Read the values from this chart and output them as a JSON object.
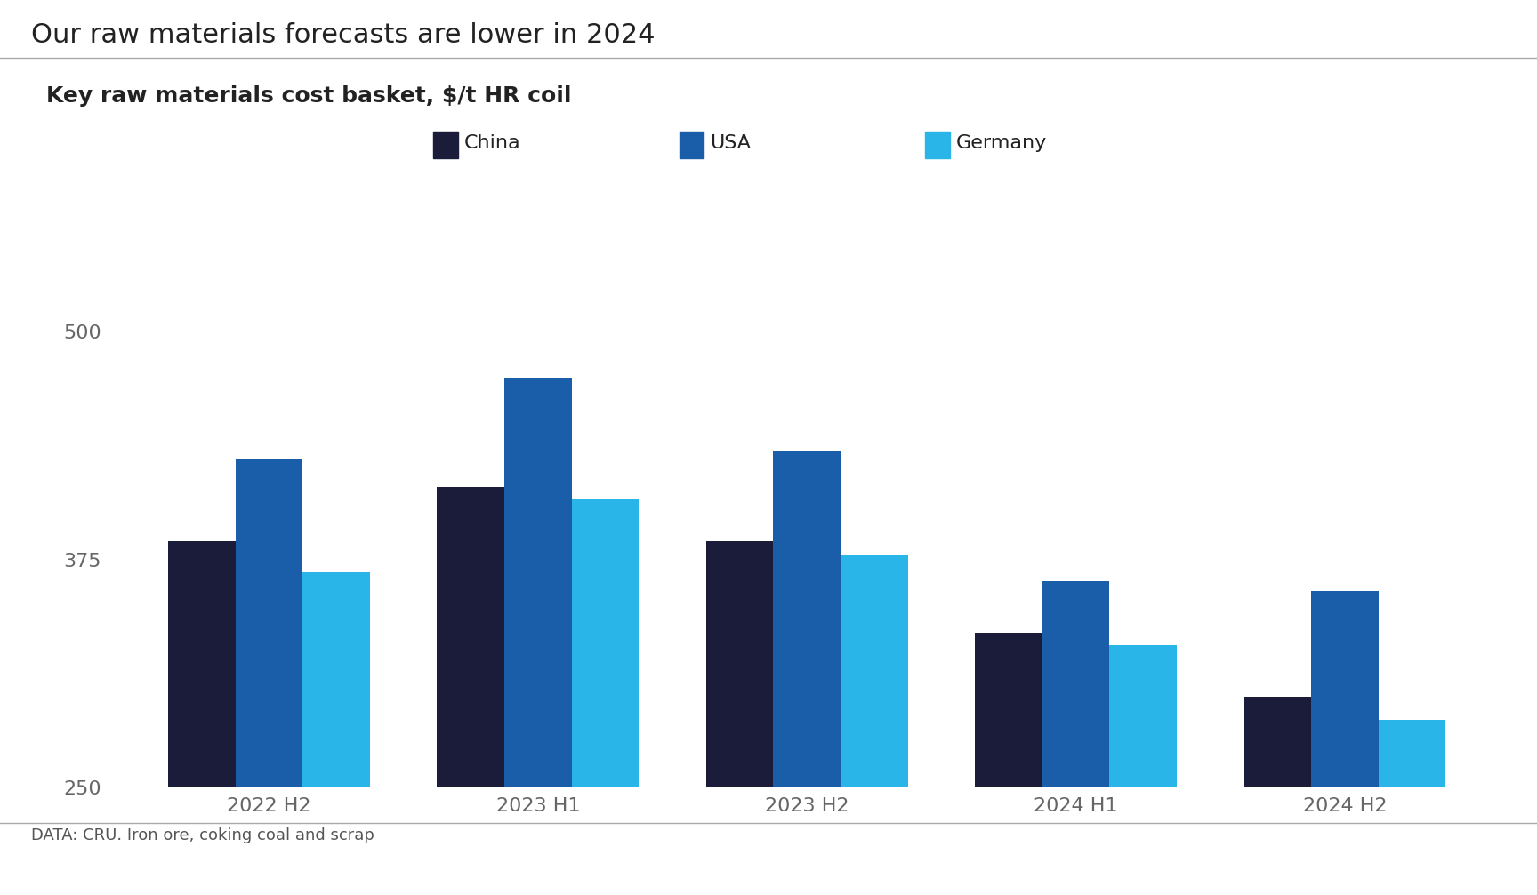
{
  "title": "Our raw materials forecasts are lower in 2024",
  "subtitle": "Key raw materials cost basket, $/t HR coil",
  "footer": "DATA: CRU. Iron ore, coking coal and scrap",
  "categories": [
    "2022 H2",
    "2023 H1",
    "2023 H2",
    "2024 H1",
    "2024 H2"
  ],
  "series": [
    {
      "name": "China",
      "color": "#1b1b3a",
      "values": [
        385,
        415,
        385,
        335,
        300
      ]
    },
    {
      "name": "USA",
      "color": "#1a5da8",
      "values": [
        430,
        475,
        435,
        363,
        358
      ]
    },
    {
      "name": "Germany",
      "color": "#29b5e8",
      "values": [
        368,
        408,
        378,
        328,
        287
      ]
    }
  ],
  "ymin": 250,
  "ymax": 520,
  "yticks": [
    250,
    375,
    500
  ],
  "background_color": "#ffffff",
  "title_fontsize": 22,
  "subtitle_fontsize": 18,
  "tick_fontsize": 16,
  "legend_fontsize": 16,
  "footer_fontsize": 13,
  "bar_width": 0.25,
  "title_color": "#222222",
  "subtitle_color": "#222222",
  "tick_color": "#666666",
  "footer_color": "#555555",
  "line_color": "#aaaaaa"
}
